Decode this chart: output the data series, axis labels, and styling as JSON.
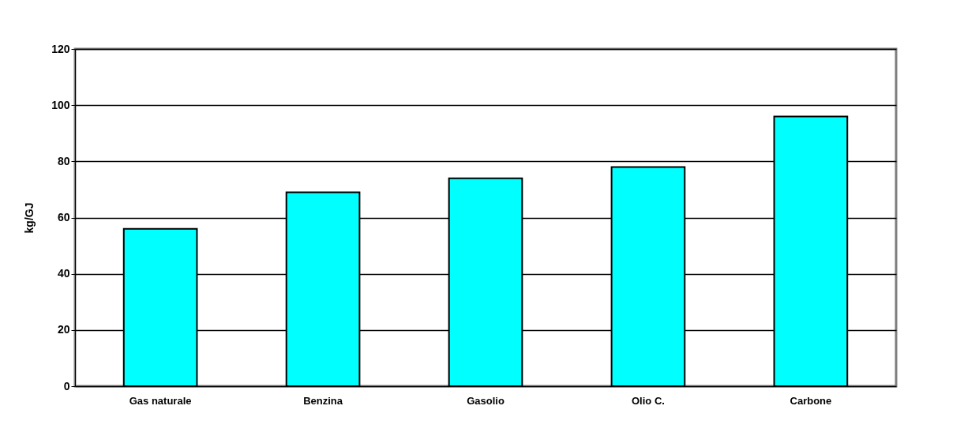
{
  "chart_data": {
    "type": "bar",
    "ylabel": "kg/GJ",
    "categories": [
      "Gas naturale",
      "Benzina",
      "Gasolio",
      "Olio C.",
      "Carbone"
    ],
    "values": [
      56,
      69,
      74,
      78,
      96
    ],
    "color": "#00ffff",
    "ylim": [
      0,
      120
    ],
    "yticks": [
      0,
      20,
      40,
      60,
      80,
      100,
      120
    ],
    "grid": "y"
  }
}
